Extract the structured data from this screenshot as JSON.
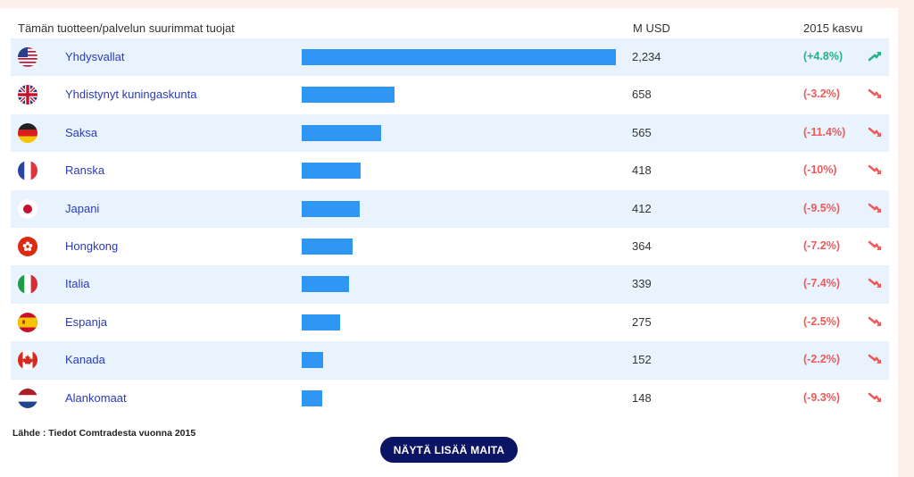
{
  "header": {
    "title": "Tämän tuotteen/palvelun suurimmat tuojat",
    "value_col": "M USD",
    "growth_col": "2015 kasvu"
  },
  "chart_data": {
    "type": "bar",
    "orientation": "horizontal",
    "title": "Tämän tuotteen/palvelun suurimmat tuojat",
    "categories": [
      "Yhdysvallat",
      "Yhdistynyt kuningaskunta",
      "Saksa",
      "Ranska",
      "Japani",
      "Hongkong",
      "Italia",
      "Espanja",
      "Kanada",
      "Alankomaat"
    ],
    "values": [
      2234,
      658,
      565,
      418,
      412,
      364,
      339,
      275,
      152,
      148
    ],
    "value_labels": [
      "2,234",
      "658",
      "565",
      "418",
      "412",
      "364",
      "339",
      "275",
      "152",
      "148"
    ],
    "growth": [
      "(+4.8%)",
      "(-3.2%)",
      "(-11.4%)",
      "(-10%)",
      "(-9.5%)",
      "(-7.2%)",
      "(-7.4%)",
      "(-2.5%)",
      "(-2.2%)",
      "(-9.3%)"
    ],
    "trend": [
      "up",
      "down",
      "down",
      "down",
      "down",
      "down",
      "down",
      "down",
      "down",
      "down"
    ],
    "flags": [
      "us-flag-icon",
      "uk-flag-icon",
      "germany-flag-icon",
      "france-flag-icon",
      "japan-flag-icon",
      "hongkong-flag-icon",
      "italy-flag-icon",
      "spain-flag-icon",
      "canada-flag-icon",
      "netherlands-flag-icon"
    ],
    "xlim": [
      0,
      2234
    ],
    "bar_color": "#3096f3",
    "positive_color": "#27b08a",
    "negative_color": "#ef5a5a"
  },
  "source": "Lähde : Tiedot Comtradesta vuonna 2015",
  "more_button": "NÄYTÄ LISÄÄ MAITA"
}
